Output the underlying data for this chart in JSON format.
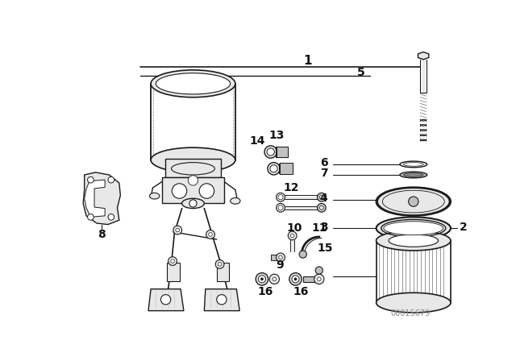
{
  "background_color": "#ffffff",
  "fig_width": 6.4,
  "fig_height": 4.48,
  "dpi": 100,
  "watermark_text": "00015679",
  "line_color": "#1a1a1a",
  "light_gray": "#e8e8e8",
  "mid_gray": "#c0c0c0",
  "dark_gray": "#888888",
  "label_fs": 9,
  "label_bold_fs": 11
}
